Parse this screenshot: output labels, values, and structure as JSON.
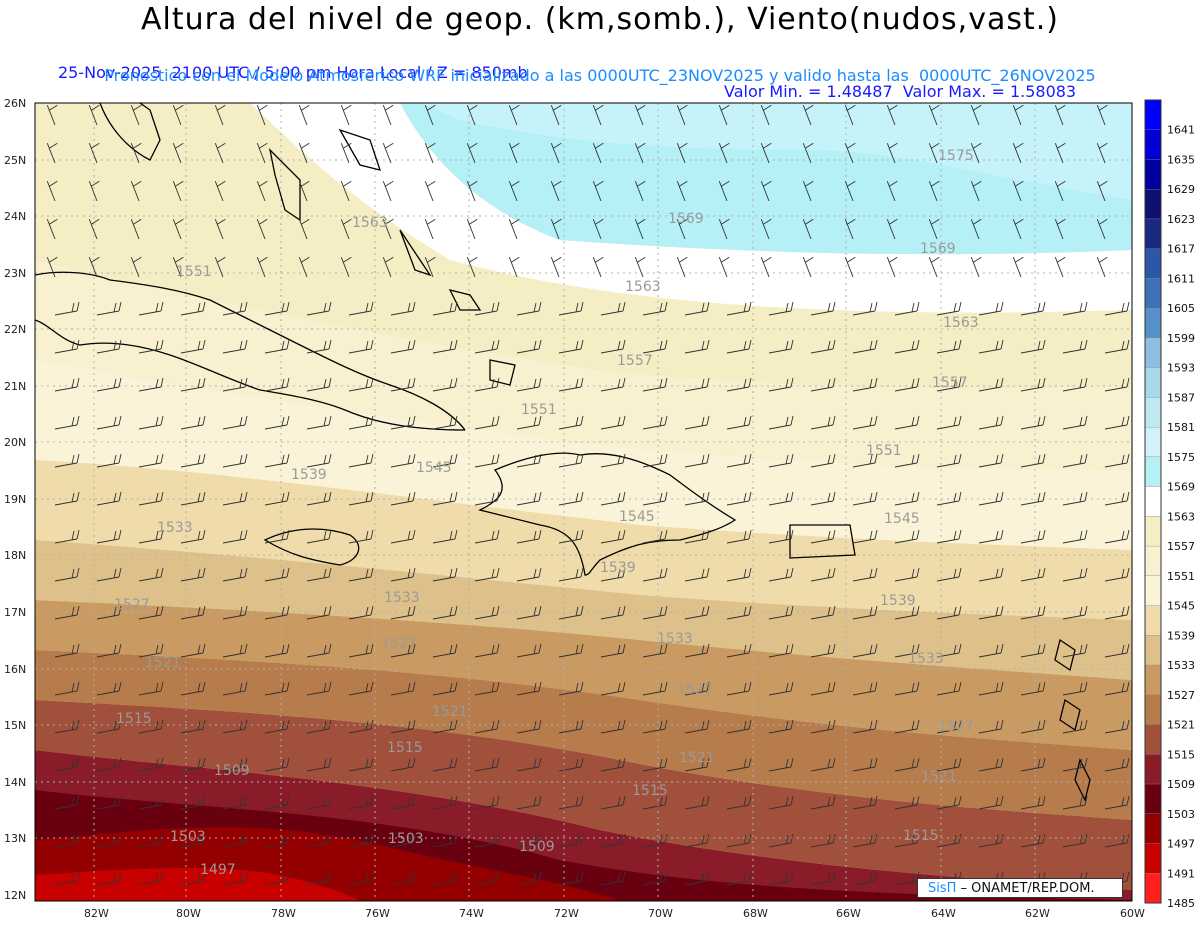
{
  "header": {
    "title": "Altura del nivel de geop. (km,somb.), Viento(nudos,vast.)",
    "line1_left": "25-Nov-2025  2100 UTC / 5:00 pm Hora Local / Z = 850mb",
    "line1_right": "Valor Min. = 1.48487  Valor Max. = 1.58083",
    "line2": "Pronostico con el Modelo Atmosferico WRF inicializado a las 0000UTC_23NOV2025 y valido hasta las  0000UTC_26NOV2025"
  },
  "map": {
    "lat_labels": [
      "26N",
      "25N",
      "24N",
      "23N",
      "22N",
      "21N",
      "20N",
      "19N",
      "18N",
      "17N",
      "16N",
      "15N",
      "14N",
      "13N",
      "12N"
    ],
    "lon_labels": [
      "82W",
      "80W",
      "78W",
      "76W",
      "74W",
      "72W",
      "70W",
      "68W",
      "66W",
      "64W",
      "62W",
      "60W"
    ],
    "contour_labels": [
      {
        "text": "1575"
      },
      {
        "text": "1569"
      },
      {
        "text": "1569"
      },
      {
        "text": "1563"
      },
      {
        "text": "1563"
      },
      {
        "text": "1563"
      },
      {
        "text": "1557"
      },
      {
        "text": "1557"
      },
      {
        "text": "1551"
      },
      {
        "text": "1551"
      },
      {
        "text": "1551"
      },
      {
        "text": "1545"
      },
      {
        "text": "1545"
      },
      {
        "text": "1545"
      },
      {
        "text": "1539"
      },
      {
        "text": "1539"
      },
      {
        "text": "1539"
      },
      {
        "text": "1533"
      },
      {
        "text": "1533"
      },
      {
        "text": "1533"
      },
      {
        "text": "1533"
      },
      {
        "text": "1527"
      },
      {
        "text": "1527"
      },
      {
        "text": "1527"
      },
      {
        "text": "1527"
      },
      {
        "text": "1521"
      },
      {
        "text": "1521"
      },
      {
        "text": "1521"
      },
      {
        "text": "1521"
      },
      {
        "text": "1515"
      },
      {
        "text": "1515"
      },
      {
        "text": "1515"
      },
      {
        "text": "1515"
      },
      {
        "text": "1509"
      },
      {
        "text": "1509"
      },
      {
        "text": "1503"
      },
      {
        "text": "1503"
      },
      {
        "text": "1497"
      }
    ]
  },
  "colorbar": {
    "levels": [
      "1641",
      "1635",
      "1629",
      "1623",
      "1617",
      "1611",
      "1605",
      "1599",
      "1593",
      "1587",
      "1581",
      "1575",
      "1569",
      "1563",
      "1557",
      "1551",
      "1545",
      "1539",
      "1533",
      "1527",
      "1521",
      "1515",
      "1509",
      "1503",
      "1497",
      "1491",
      "1485"
    ],
    "colors": [
      "#0000ff",
      "#0000d4",
      "#0000a0",
      "#101070",
      "#1a2a80",
      "#2c56a8",
      "#3d72b8",
      "#5590c8",
      "#8ebfe0",
      "#a9d8ea",
      "#bfe8f0",
      "#d3f2f7",
      "#b5f0f7",
      "#ffffff",
      "#f5edc4",
      "#f9f0d0",
      "#fbf3d8",
      "#efdcaa",
      "#ddc08a",
      "#c99a62",
      "#b67c4c",
      "#a1503c",
      "#8a1c2a",
      "#680010",
      "#940000",
      "#c80000",
      "#ff2020"
    ]
  },
  "credit": {
    "sis": "SisΠ",
    "org": " – ONAMET/REP.DOM."
  }
}
